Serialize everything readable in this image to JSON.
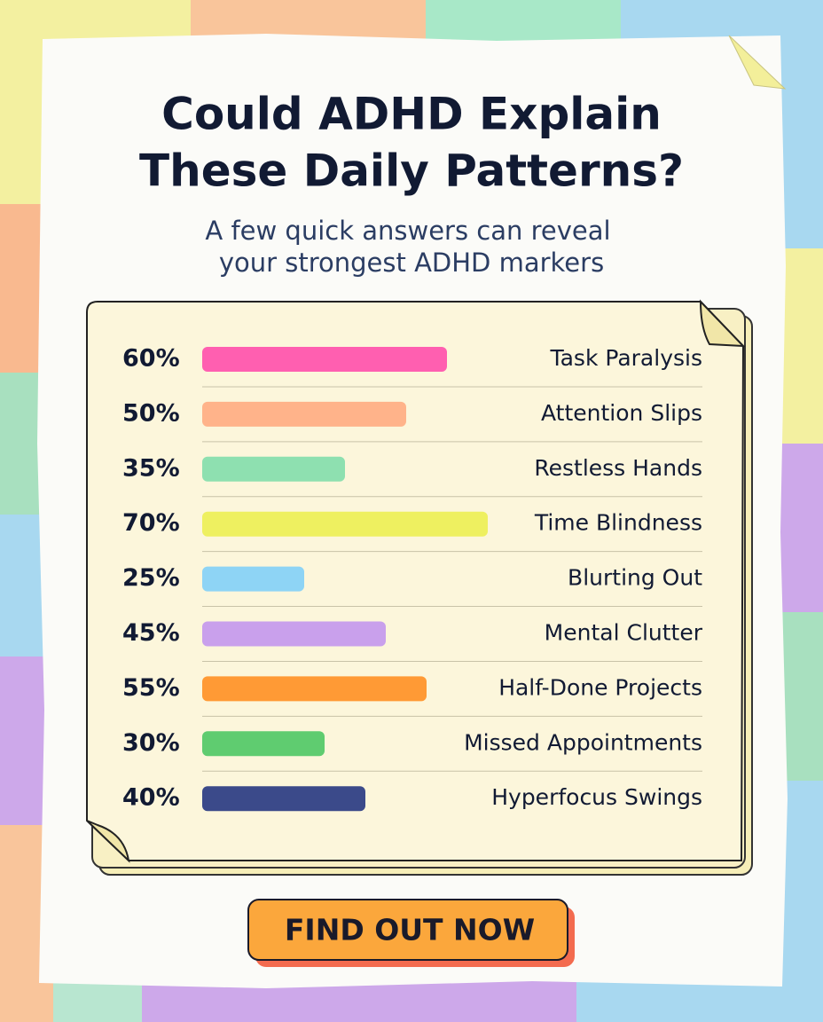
{
  "chart_data": {
    "type": "bar",
    "orientation": "horizontal",
    "title_lines": [
      "Could ADHD Explain",
      "These Daily Patterns?"
    ],
    "subtitle_lines": [
      "A few quick answers can reveal",
      "your strongest ADHD markers"
    ],
    "categories": [
      "Task Paralysis",
      "Attention Slips",
      "Restless Hands",
      "Time Blindness",
      "Blurting Out",
      "Mental Clutter",
      "Half-Done Projects",
      "Missed Appointments",
      "Hyperfocus Swings"
    ],
    "values": [
      60,
      50,
      35,
      70,
      25,
      45,
      55,
      30,
      40
    ],
    "value_labels": [
      "60%",
      "50%",
      "35%",
      "70%",
      "25%",
      "45%",
      "55%",
      "30%",
      "40%"
    ],
    "colors": [
      "#ff5fb0",
      "#ffb38a",
      "#8ee0b0",
      "#eef060",
      "#8ed4f5",
      "#c9a0ec",
      "#ff9a35",
      "#5fcc70",
      "#3b4a8a"
    ]
  },
  "call_to_action": {
    "label": "FIND OUT NOW"
  }
}
